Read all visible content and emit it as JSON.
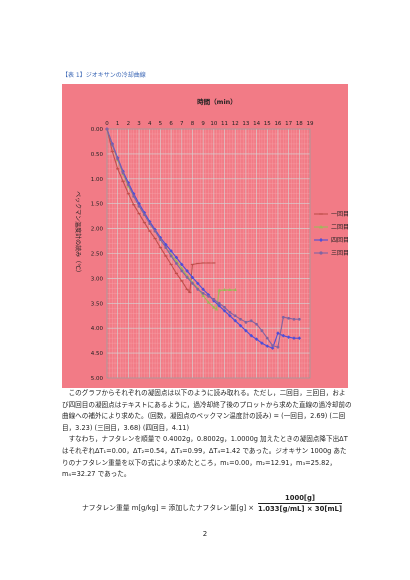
{
  "caption": "【表 1】ジオキサンの冷却曲線",
  "chart_data": {
    "type": "line",
    "title": "時間（min）",
    "xlabel": "時間（min）",
    "ylabel": "ベックマン温度計の読み（℃）",
    "xlim": [
      0,
      19
    ],
    "ylim": [
      0,
      5.0
    ],
    "y_inverted": true,
    "x_axis_position": "top",
    "x_ticks": [
      "0",
      "1",
      "2",
      "3",
      "4",
      "5",
      "6",
      "7",
      "8",
      "9",
      "10",
      "11",
      "12",
      "13",
      "14",
      "15",
      "16",
      "17",
      "18",
      "19"
    ],
    "y_ticks": [
      "0.00",
      "0.50",
      "1.00",
      "1.50",
      "2.00",
      "2.50",
      "3.00",
      "3.50",
      "4.00",
      "4.50",
      "5.00"
    ],
    "grid": true,
    "legend_position": "right",
    "background": "#f27b86",
    "series": [
      {
        "name": "一回目",
        "color": "#c0504d",
        "marker": "dash",
        "points": [
          [
            0,
            0
          ],
          [
            0.5,
            0.45
          ],
          [
            1,
            0.8
          ],
          [
            1.5,
            1.05
          ],
          [
            2,
            1.3
          ],
          [
            2.5,
            1.52
          ],
          [
            3,
            1.7
          ],
          [
            3.5,
            1.88
          ],
          [
            4,
            2.05
          ],
          [
            4.5,
            2.2
          ],
          [
            5,
            2.38
          ],
          [
            5.5,
            2.55
          ],
          [
            6,
            2.72
          ],
          [
            6.5,
            2.9
          ],
          [
            7,
            3.05
          ],
          [
            7.5,
            3.22
          ],
          [
            7.75,
            3.28
          ],
          [
            8,
            2.72
          ],
          [
            8.5,
            2.7
          ],
          [
            9,
            2.69
          ],
          [
            9.5,
            2.69
          ],
          [
            10,
            2.69
          ]
        ]
      },
      {
        "name": "二回目",
        "color": "#9bbb59",
        "marker": "triangle",
        "points": [
          [
            0,
            0
          ],
          [
            0.5,
            0.32
          ],
          [
            1,
            0.62
          ],
          [
            1.5,
            0.9
          ],
          [
            2,
            1.15
          ],
          [
            2.5,
            1.35
          ],
          [
            3,
            1.55
          ],
          [
            3.5,
            1.72
          ],
          [
            4,
            1.9
          ],
          [
            4.5,
            2.05
          ],
          [
            5,
            2.22
          ],
          [
            5.5,
            2.38
          ],
          [
            6,
            2.52
          ],
          [
            6.5,
            2.65
          ],
          [
            7,
            2.8
          ],
          [
            7.5,
            2.95
          ],
          [
            8,
            3.08
          ],
          [
            8.5,
            3.2
          ],
          [
            9,
            3.35
          ],
          [
            9.5,
            3.48
          ],
          [
            10,
            3.58
          ],
          [
            10.25,
            3.62
          ],
          [
            10.5,
            3.24
          ],
          [
            11,
            3.23
          ],
          [
            11.5,
            3.23
          ],
          [
            12,
            3.23
          ]
        ]
      },
      {
        "name": "四回目",
        "color": "#4f4fd8",
        "marker": "diamond",
        "points": [
          [
            0,
            0
          ],
          [
            0.5,
            0.3
          ],
          [
            1,
            0.58
          ],
          [
            1.5,
            0.85
          ],
          [
            2,
            1.08
          ],
          [
            2.5,
            1.3
          ],
          [
            3,
            1.5
          ],
          [
            3.5,
            1.68
          ],
          [
            4,
            1.86
          ],
          [
            4.5,
            2.02
          ],
          [
            5,
            2.18
          ],
          [
            5.5,
            2.32
          ],
          [
            6,
            2.45
          ],
          [
            6.5,
            2.58
          ],
          [
            7,
            2.72
          ],
          [
            7.5,
            2.85
          ],
          [
            8,
            2.98
          ],
          [
            8.5,
            3.1
          ],
          [
            9,
            3.22
          ],
          [
            9.5,
            3.33
          ],
          [
            10,
            3.45
          ],
          [
            10.5,
            3.55
          ],
          [
            11,
            3.65
          ],
          [
            11.5,
            3.75
          ],
          [
            12,
            3.85
          ],
          [
            12.5,
            3.95
          ],
          [
            13,
            4.05
          ],
          [
            13.5,
            4.15
          ],
          [
            14,
            4.22
          ],
          [
            14.5,
            4.3
          ],
          [
            15,
            4.36
          ],
          [
            15.5,
            4.4
          ],
          [
            16,
            4.1
          ],
          [
            16.5,
            4.15
          ],
          [
            17,
            4.18
          ],
          [
            17.5,
            4.2
          ],
          [
            18,
            4.2
          ]
        ]
      },
      {
        "name": "三回目",
        "color": "#8064a2",
        "marker": "circle",
        "points": [
          [
            0,
            0
          ],
          [
            0.5,
            0.32
          ],
          [
            1,
            0.6
          ],
          [
            1.5,
            0.88
          ],
          [
            2,
            1.12
          ],
          [
            2.5,
            1.35
          ],
          [
            3,
            1.55
          ],
          [
            3.5,
            1.72
          ],
          [
            4,
            1.9
          ],
          [
            4.5,
            2.05
          ],
          [
            5,
            2.22
          ],
          [
            5.5,
            2.38
          ],
          [
            6,
            2.55
          ],
          [
            6.5,
            2.7
          ],
          [
            7,
            2.85
          ],
          [
            7.5,
            2.98
          ],
          [
            8,
            3.1
          ],
          [
            8.5,
            3.22
          ],
          [
            9,
            3.3
          ],
          [
            9.5,
            3.36
          ],
          [
            10,
            3.42
          ],
          [
            10.5,
            3.5
          ],
          [
            11,
            3.58
          ],
          [
            11.5,
            3.68
          ],
          [
            12,
            3.75
          ],
          [
            12.5,
            3.82
          ],
          [
            13,
            3.88
          ],
          [
            13.5,
            3.85
          ],
          [
            14,
            3.92
          ],
          [
            14.5,
            4.05
          ],
          [
            15,
            4.2
          ],
          [
            15.5,
            4.35
          ],
          [
            16,
            4.38
          ],
          [
            16.5,
            3.78
          ],
          [
            17,
            3.8
          ],
          [
            17.5,
            3.82
          ],
          [
            18,
            3.82
          ]
        ]
      }
    ]
  },
  "paragraphs": [
    "このグラフからそれぞれの凝固点は以下のように読み取れる。ただし，二回目，三回目，および四回目の凝固点はテキストにあるように，過冷却終了後のプロットから求めた直線の過冷却前の曲線への補外により求めた。(回数，凝固点のベックマン温度計の読み) = (一回目，2.69) (二回目，3.23) (三回目，3.68) (四回目，4.11)",
    "すなわち，ナフタレンを順量で 0.4002g，0.8002g，1.0000g 加えたときの凝固点降下出ΔT はそれぞれΔT₁=0.00，ΔT₂=0.54，ΔT₃=0.99，ΔT₄=1.42 であった。ジオキサン 1000g あたりのナフタレン重量を以下の式により求めたところ，m₁=0.00，m₂=12.91，m₃=25.82，m₄=32.27 であった。"
  ],
  "formula": {
    "lhs": "ナフタレン重量 m[g/kg] = 添加したナフタレン量[g] ×",
    "numerator": "1000[g]",
    "denominator": "1.033[g/mL] × 30[mL]"
  },
  "page_number": "2"
}
